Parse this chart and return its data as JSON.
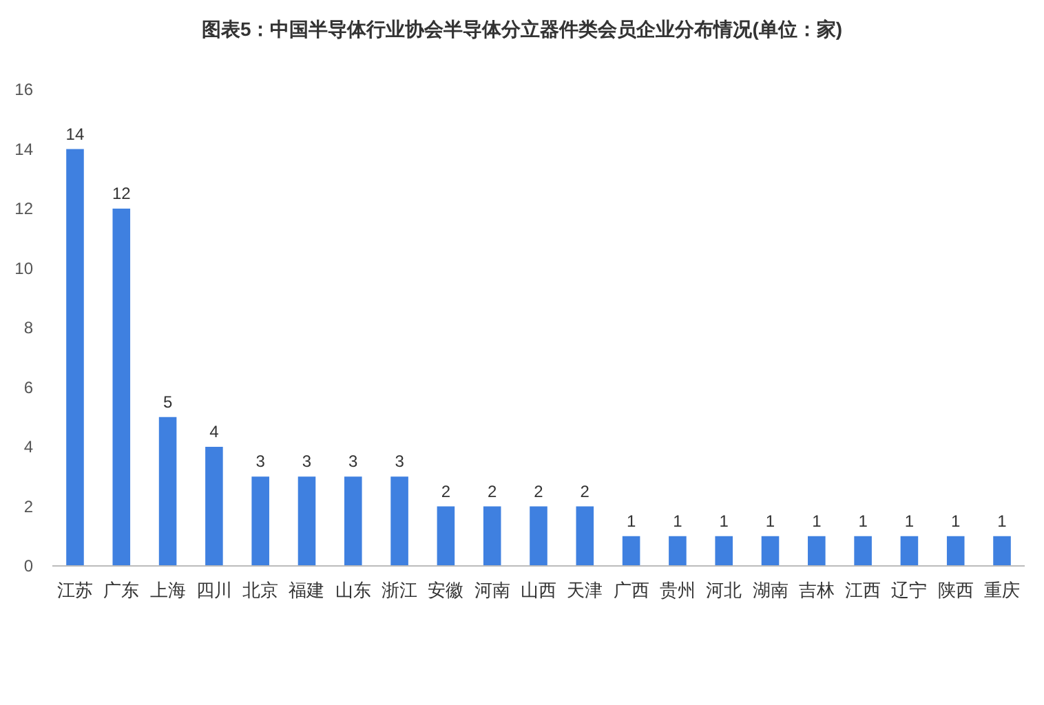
{
  "chart_data": {
    "type": "bar",
    "title": "图表5：中国半导体行业协会半导体分立器件类会员企业分布情况(单位：家)",
    "categories": [
      "江苏",
      "广东",
      "上海",
      "四川",
      "北京",
      "福建",
      "山东",
      "浙江",
      "安徽",
      "河南",
      "山西",
      "天津",
      "广西",
      "贵州",
      "河北",
      "湖南",
      "吉林",
      "江西",
      "辽宁",
      "陕西",
      "重庆"
    ],
    "values": [
      14,
      12,
      5,
      4,
      3,
      3,
      3,
      3,
      2,
      2,
      2,
      2,
      1,
      1,
      1,
      1,
      1,
      1,
      1,
      1,
      1
    ],
    "color": "#3f80e0",
    "ylim": [
      0,
      16
    ],
    "yticks": [
      0,
      2,
      4,
      6,
      8,
      10,
      12,
      14,
      16
    ],
    "data_labels": true,
    "grid": false
  }
}
